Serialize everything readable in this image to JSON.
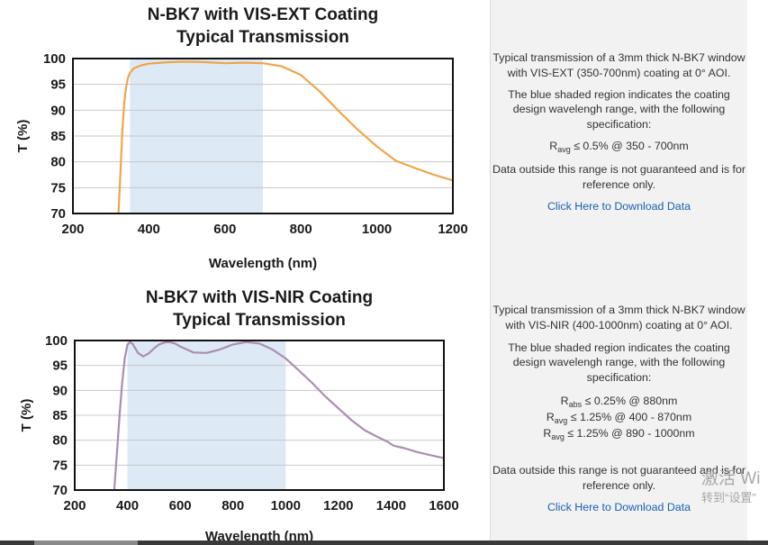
{
  "charts": [
    {
      "title_line1": "N-BK7 with VIS-EXT Coating",
      "title_line2": "Typical Transmission",
      "ylabel": "T (%)",
      "xlabel": "Wavelength (nm)",
      "description": {
        "p1": "Typical transmission of a 3mm thick N-BK7 window with VIS-EXT (350-700nm) coating at 0° AOI.",
        "p2": "The blue shaded region indicates the coating design wavelengh range, with the following specification:",
        "spec": [
          {
            "sym": "R",
            "sub": "avg",
            "text": " ≤ 0.5% @ 350 - 700nm"
          }
        ],
        "p3": "Data outside this range is not guaranteed and is for reference only.",
        "link": "Click Here to Download Data"
      }
    },
    {
      "title_line1": "N-BK7 with VIS-NIR Coating",
      "title_line2": "Typical Transmission",
      "ylabel": "T (%)",
      "xlabel": "Wavelength (nm)",
      "description": {
        "p1": "Typical transmission of a 3mm thick N-BK7 window with VIS-NIR (400-1000nm) coating at 0° AOI.",
        "p2": "The blue shaded region indicates the coating design wavelengh range, with the following specification:",
        "spec": [
          {
            "sym": "R",
            "sub": "abs",
            "text": " ≤ 0.25% @ 880nm"
          },
          {
            "sym": "R",
            "sub": "avg",
            "text": " ≤ 1.25% @ 400 - 870nm"
          },
          {
            "sym": "R",
            "sub": "avg",
            "text": " ≤ 1.25% @ 890 - 1000nm"
          }
        ],
        "p3": "Data outside this range is not guaranteed and is for reference only.",
        "link": "Click Here to Download Data"
      }
    }
  ],
  "chart_data": [
    {
      "type": "line",
      "title": "N-BK7 with VIS-EXT Coating Typical Transmission",
      "xlabel": "Wavelength (nm)",
      "ylabel": "T (%)",
      "xlim": [
        200,
        1200
      ],
      "ylim": [
        70,
        100
      ],
      "xticks": [
        200,
        400,
        600,
        800,
        1000,
        1200
      ],
      "yticks": [
        70,
        75,
        80,
        85,
        90,
        95,
        100
      ],
      "grid": "horizontal",
      "shaded_range": [
        350,
        700
      ],
      "shade_color": "#dde9f5",
      "series": [
        {
          "color": "#f0a54a",
          "x": [
            320,
            325,
            330,
            335,
            340,
            345,
            350,
            360,
            380,
            400,
            450,
            500,
            550,
            600,
            650,
            700,
            750,
            800,
            850,
            900,
            950,
            1000,
            1050,
            1100,
            1150,
            1200
          ],
          "y": [
            70,
            78,
            86,
            91.5,
            94.5,
            96.3,
            97.2,
            98.1,
            98.7,
            99.0,
            99.3,
            99.4,
            99.3,
            99.1,
            99.2,
            99.1,
            98.5,
            96.8,
            93.6,
            89.8,
            86.2,
            83.0,
            80.2,
            78.8,
            77.5,
            76.4
          ]
        }
      ]
    },
    {
      "type": "line",
      "title": "N-BK7 with VIS-NIR Coating Typical Transmission",
      "xlabel": "Wavelength (nm)",
      "ylabel": "T (%)",
      "xlim": [
        200,
        1600
      ],
      "ylim": [
        70,
        100
      ],
      "xticks": [
        200,
        400,
        600,
        800,
        1000,
        1200,
        1400,
        1600
      ],
      "yticks": [
        70,
        75,
        80,
        85,
        90,
        95,
        100
      ],
      "grid": "horizontal",
      "shaded_range": [
        400,
        1000
      ],
      "shade_color": "#dde9f5",
      "series": [
        {
          "color": "#a88fb0",
          "x": [
            350,
            360,
            370,
            380,
            390,
            400,
            410,
            420,
            440,
            460,
            480,
            500,
            520,
            540,
            560,
            580,
            600,
            650,
            700,
            750,
            800,
            850,
            900,
            950,
            1000,
            1050,
            1100,
            1150,
            1200,
            1250,
            1300,
            1350,
            1390,
            1400,
            1410,
            1450,
            1500,
            1550,
            1600
          ],
          "y": [
            70,
            77.5,
            85,
            91.5,
            96.5,
            99.2,
            99.7,
            99.3,
            97.5,
            96.8,
            97.4,
            98.4,
            99.2,
            99.6,
            99.7,
            99.4,
            98.8,
            97.6,
            97.5,
            98.2,
            99.2,
            99.7,
            99.4,
            98.2,
            96.4,
            94.0,
            91.5,
            88.8,
            86.4,
            84.0,
            82.0,
            80.6,
            79.6,
            79.2,
            78.9,
            78.4,
            77.6,
            77.0,
            76.4
          ]
        }
      ]
    }
  ],
  "watermark": {
    "line1": "激活 Wi",
    "line2": "转到“设置”"
  }
}
